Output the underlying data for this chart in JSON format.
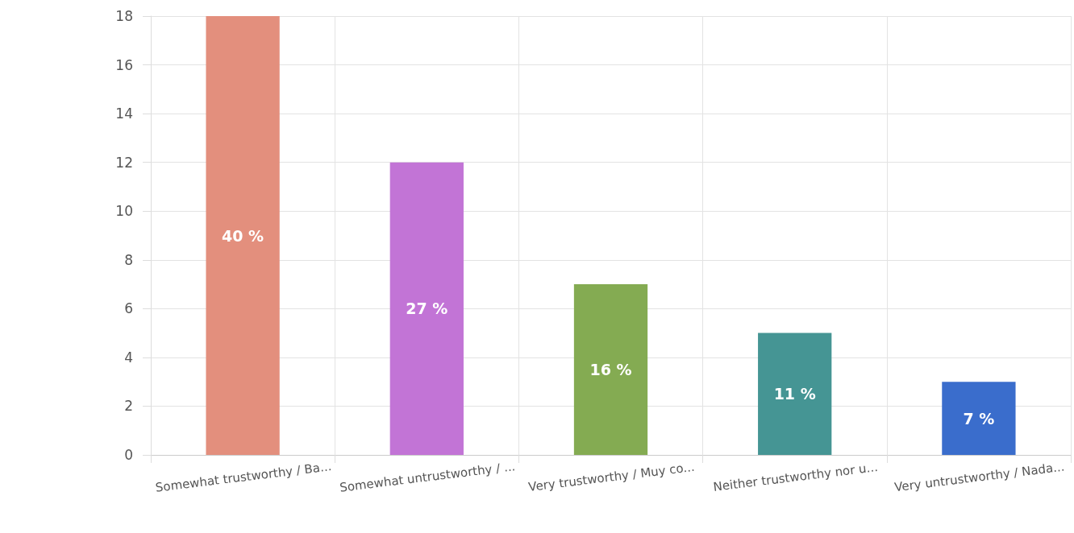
{
  "chart_data": {
    "type": "bar",
    "categories": [
      "Somewhat trustworthy / Ba...",
      "Somewhat untrustworthy / ...",
      "Very trustworthy / Muy co...",
      "Neither trustworthy nor u...",
      "Very untrustworthy / Nada..."
    ],
    "values": [
      18,
      12,
      7,
      5,
      3
    ],
    "colors": [
      "#e38f7d",
      "#c274d6",
      "#84ab52",
      "#459594",
      "#3a6dcc"
    ],
    "annotations": [
      "40 %",
      "27 %",
      "16 %",
      "11 %",
      "7 %"
    ],
    "ylim": [
      0,
      18
    ],
    "yticks": [
      0,
      2,
      4,
      6,
      8,
      10,
      12,
      14,
      16,
      18
    ],
    "grid": true
  }
}
